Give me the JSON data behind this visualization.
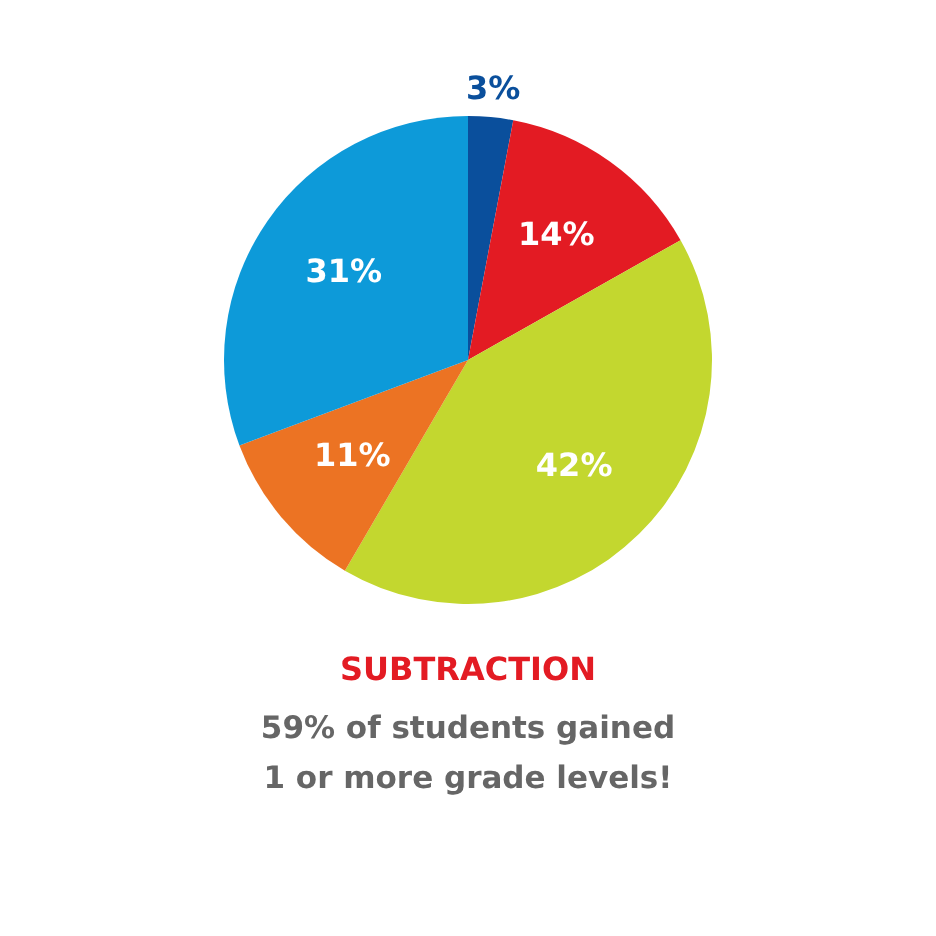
{
  "chart_data": {
    "type": "pie",
    "title": "SUBTRACTION",
    "subtitle": "59% of students gained 1 or more grade levels!",
    "categories": [
      null,
      null,
      null,
      null,
      null
    ],
    "values": [
      3,
      14,
      42,
      11,
      31
    ],
    "value_labels": [
      "3%",
      "14%",
      "42%",
      "11%",
      "31%"
    ],
    "colors": [
      "#0a4f9c",
      "#e31b23",
      "#c3d72f",
      "#ec7323",
      "#0d9ad9"
    ],
    "legend": false
  }
}
